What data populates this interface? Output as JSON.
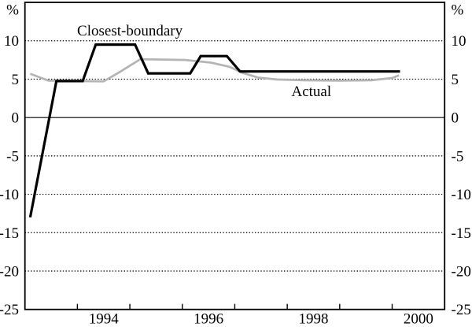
{
  "figure": {
    "unit_left": "%",
    "unit_right": "%"
  },
  "chart_data": {
    "type": "line",
    "title": "",
    "x_axis": {
      "range": [
        1993,
        2001
      ],
      "tick_years": [
        1994,
        1995,
        1996,
        1997,
        1998,
        1999,
        2000
      ],
      "labels": [
        "1994",
        "1996",
        "1998",
        "2000"
      ],
      "label_positions": [
        1994.5,
        1996.5,
        1998.5,
        2000.5
      ]
    },
    "y_axis": {
      "range": [
        -25,
        15
      ],
      "ticks": [
        10,
        5,
        0,
        -5,
        -10,
        -15,
        -20,
        -25
      ],
      "unit": "%",
      "zero_line": "solid",
      "gridline_style": "dotted",
      "labels_on_both_sides": true
    },
    "colors": {
      "closest_boundary": "#000000",
      "actual": "#b4b4b4",
      "grid": "#000000",
      "frame": "#000000"
    },
    "series": [
      {
        "name": "Closest-boundary",
        "color": "#000000",
        "stroke_width": 3.2,
        "points": [
          [
            1993.1,
            -13.0
          ],
          [
            1993.6,
            4.75
          ],
          [
            1994.1,
            4.75
          ],
          [
            1994.35,
            9.5
          ],
          [
            1995.1,
            9.5
          ],
          [
            1995.35,
            5.75
          ],
          [
            1996.15,
            5.75
          ],
          [
            1996.35,
            8.0
          ],
          [
            1996.85,
            8.0
          ],
          [
            1997.1,
            6.0
          ],
          [
            2000.15,
            6.0
          ]
        ]
      },
      {
        "name": "Actual",
        "color": "#b4b4b4",
        "stroke_width": 2.7,
        "points": [
          [
            1993.1,
            5.7
          ],
          [
            1993.45,
            4.8
          ],
          [
            1994.5,
            4.7
          ],
          [
            1994.8,
            5.9
          ],
          [
            1995.2,
            7.6
          ],
          [
            1996.05,
            7.5
          ],
          [
            1996.55,
            7.15
          ],
          [
            1996.9,
            6.6
          ],
          [
            1997.15,
            5.8
          ],
          [
            1997.45,
            5.2
          ],
          [
            1997.8,
            4.95
          ],
          [
            1998.3,
            4.85
          ],
          [
            1999.0,
            4.8
          ],
          [
            1999.6,
            4.85
          ],
          [
            2000.0,
            5.15
          ],
          [
            2000.13,
            5.5
          ]
        ]
      }
    ],
    "annotations": [
      {
        "text": "Closest-boundary",
        "year": 1995.0,
        "value": 11.35
      },
      {
        "text": "Actual",
        "year": 1998.46,
        "value": 3.45
      }
    ]
  }
}
